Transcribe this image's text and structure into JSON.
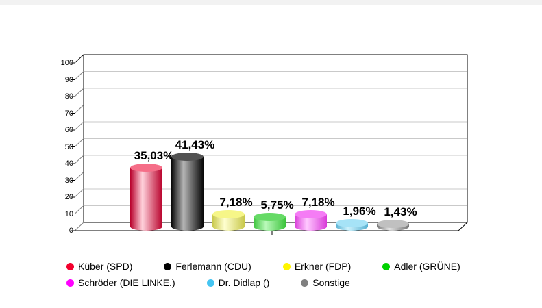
{
  "chart_data": {
    "type": "bar",
    "style": "3d-cylinder",
    "title": "",
    "xlabel": "",
    "ylabel": "",
    "ylim": [
      0,
      100
    ],
    "ytick_step": 10,
    "ytick_labels": [
      "0",
      "10",
      "20",
      "30",
      "40",
      "50",
      "60",
      "70",
      "80",
      "90",
      "100"
    ],
    "grid": true,
    "gridline_color": "#c9c9c9",
    "frame_color": "#000000",
    "legend_position": "bottom",
    "categories": [
      "Küber (SPD)",
      "Ferlemann (CDU)",
      "Erkner (FDP)",
      "Adler (GRÜNE)",
      "Schröder (DIE LINKE.)",
      "Dr. Didlap ()",
      "Sonstige"
    ],
    "values": [
      35.03,
      41.43,
      7.18,
      5.75,
      7.18,
      1.96,
      1.43
    ],
    "series": [
      {
        "name": "Küber (SPD)",
        "value": 35.03,
        "label": "35,03%",
        "color": {
          "dot": "#f3002d",
          "edge": "#b8002a",
          "mid": "#ffd2dc",
          "top": "#f56e88"
        }
      },
      {
        "name": "Ferlemann (CDU)",
        "value": 41.43,
        "label": "41,43%",
        "color": {
          "dot": "#000000",
          "edge": "#060606",
          "mid": "#b5b5b5",
          "top": "#525252"
        }
      },
      {
        "name": "Erkner (FDP)",
        "value": 7.18,
        "label": "7,18%",
        "color": {
          "dot": "#fff500",
          "edge": "#c8c84b",
          "mid": "#ffffd0",
          "top": "#f6f688"
        }
      },
      {
        "name": "Adler (GRÜNE)",
        "value": 5.75,
        "label": "5,75%",
        "color": {
          "dot": "#00d200",
          "edge": "#3bc43b",
          "mid": "#baf9ba",
          "top": "#66da66"
        }
      },
      {
        "name": "Schröder (DIE LINKE.)",
        "value": 7.18,
        "label": "7,18%",
        "color": {
          "dot": "#ff00ff",
          "edge": "#d93cd9",
          "mid": "#ffc8ff",
          "top": "#f57cf5"
        }
      },
      {
        "name": "Dr. Didlap ()",
        "value": 1.96,
        "label": "1,96%",
        "color": {
          "dot": "#45c5f2",
          "edge": "#57b1d2",
          "mid": "#cdf2fd",
          "top": "#a6e3f7"
        }
      },
      {
        "name": "Sonstige",
        "value": 1.43,
        "label": "1,43%",
        "color": {
          "dot": "#808080",
          "edge": "#767676",
          "mid": "#e2e2e2",
          "top": "#c0c0c0"
        }
      }
    ]
  },
  "legend": {
    "rows": [
      [
        0,
        1,
        2,
        3
      ],
      [
        4,
        5,
        6
      ]
    ]
  }
}
